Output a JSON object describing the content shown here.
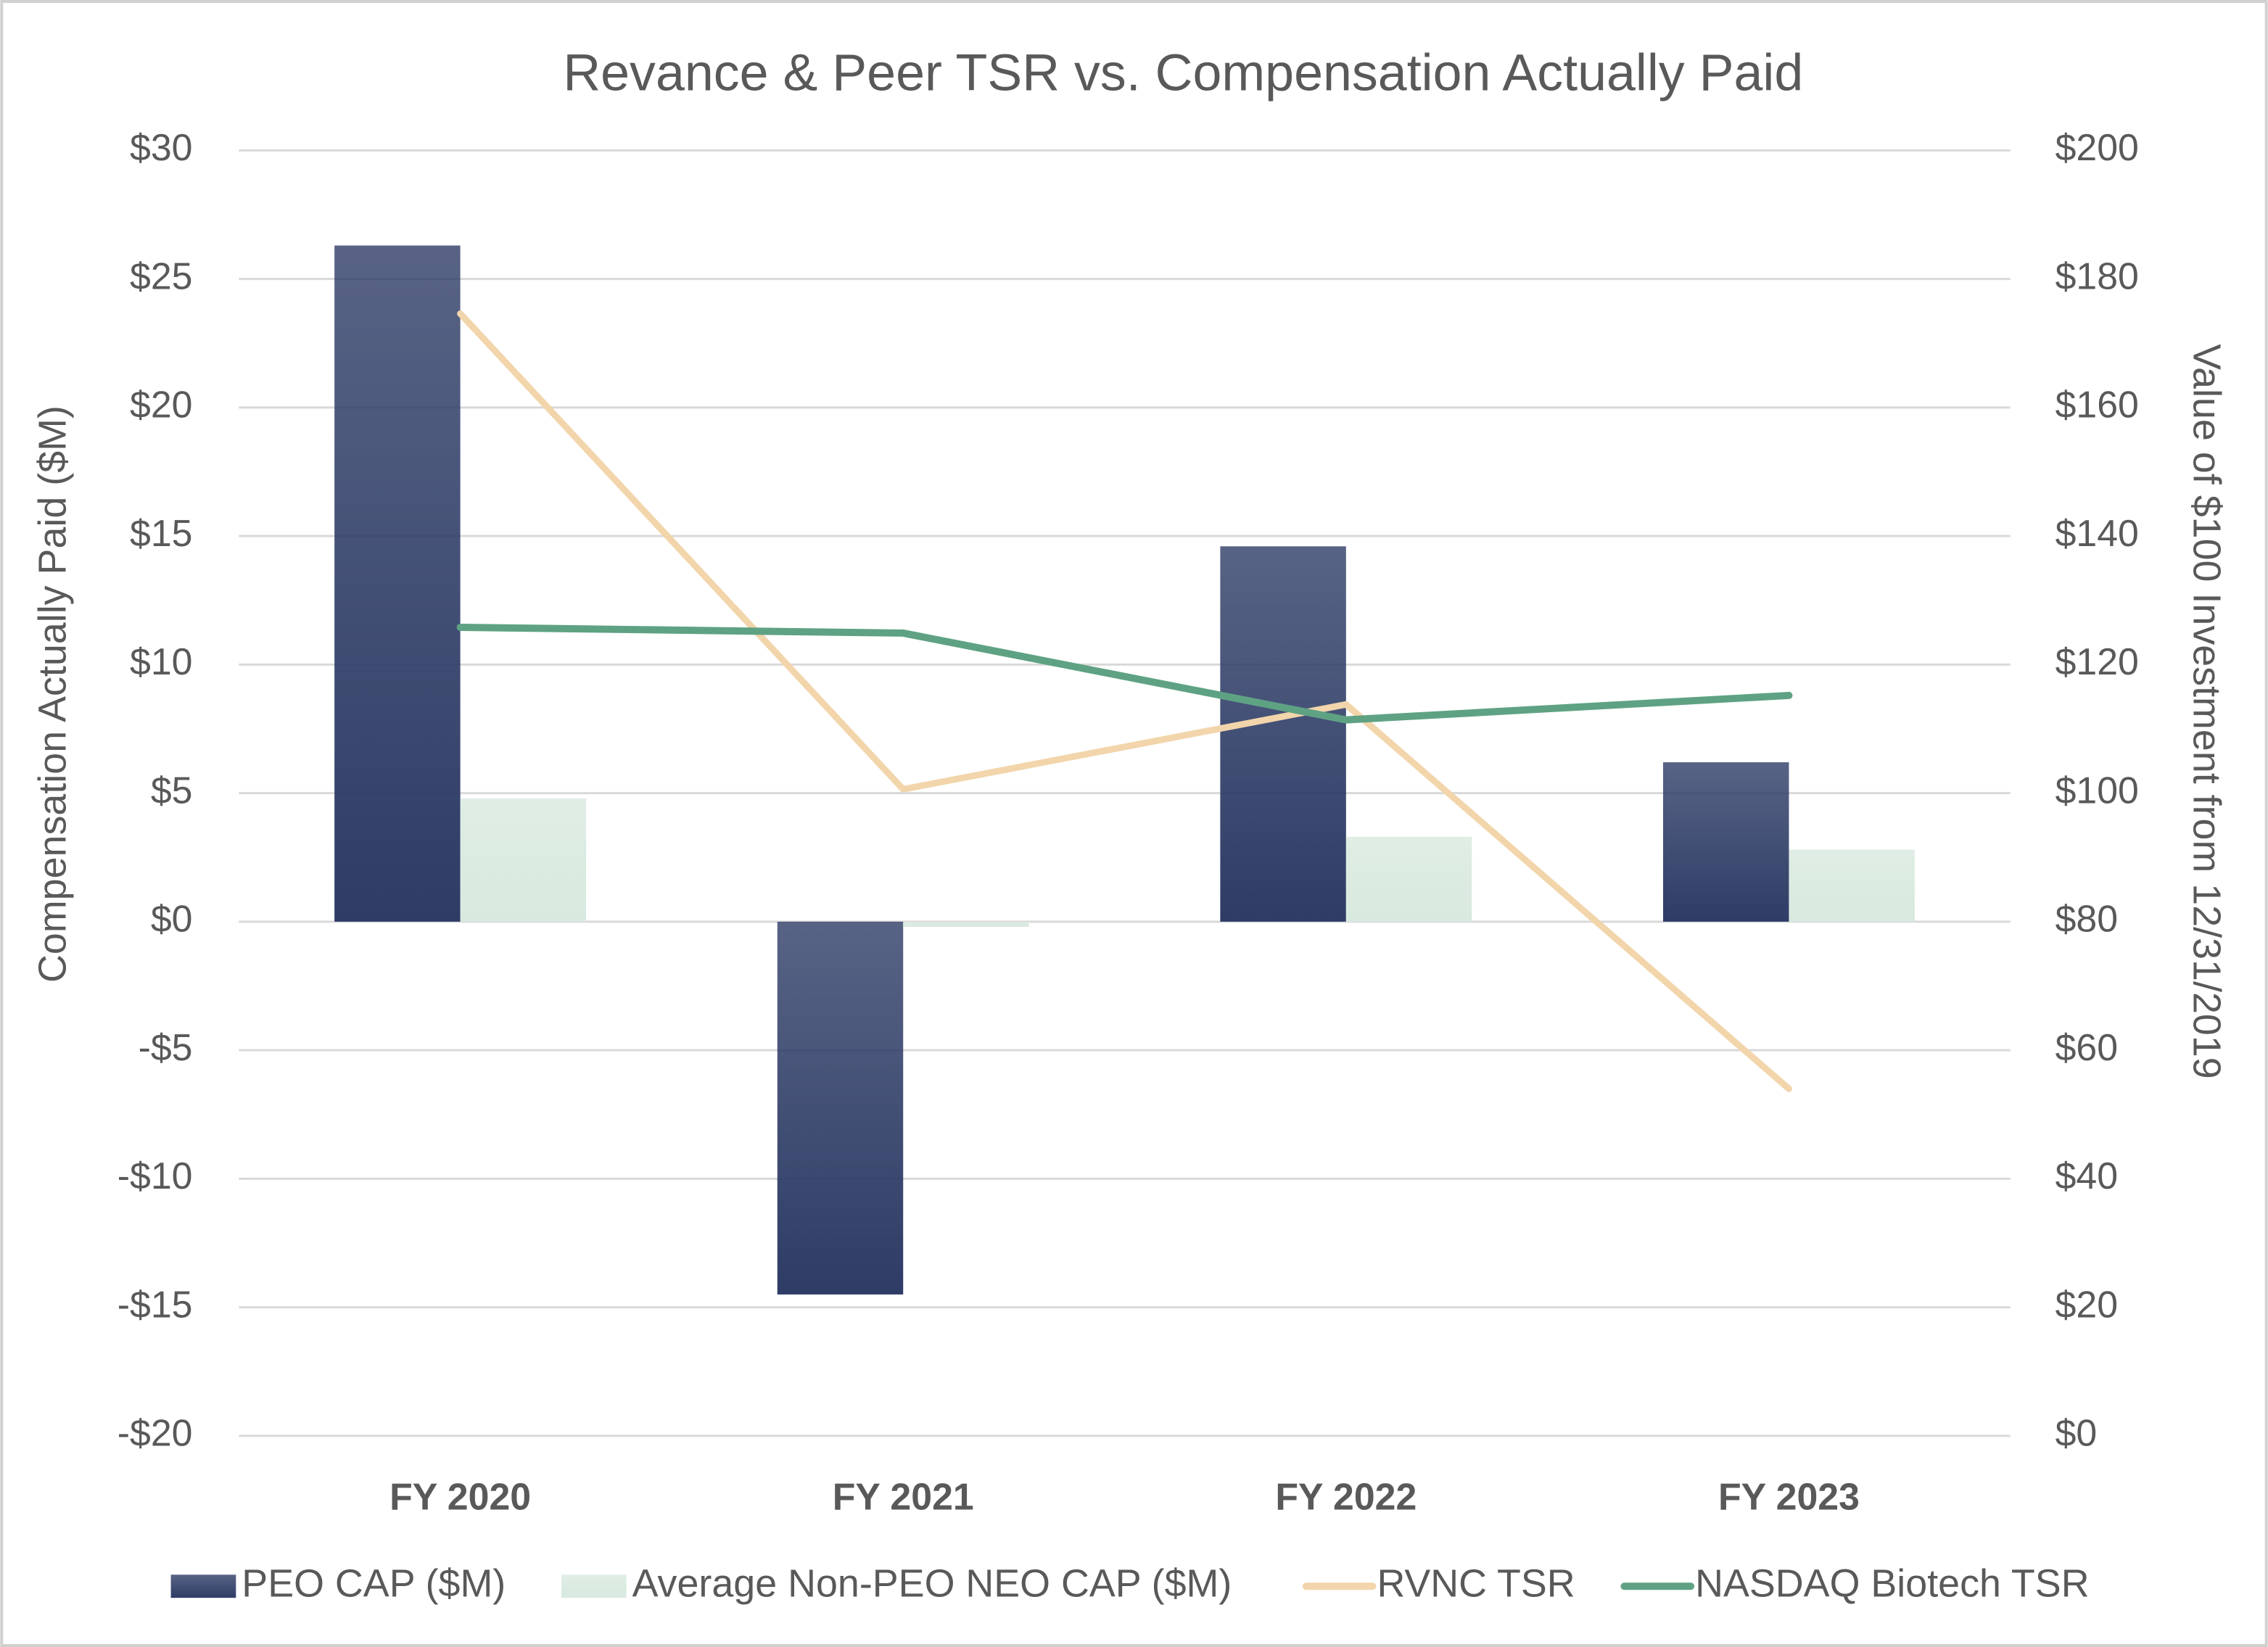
{
  "chart_data": {
    "type": "bar",
    "title": "Revance & Peer TSR vs. Compensation Actually Paid",
    "y_label": "Compensation Actually Paid ($M)",
    "y2_label": "Value of $100 Investment from 12/31/2019",
    "categories": [
      "FY 2020",
      "FY 2021",
      "FY 2022",
      "FY 2023"
    ],
    "series": [
      {
        "name": "PEO CAP ($M)",
        "type": "bar",
        "color": "#2e3c66",
        "values": [
          26.3,
          -14.5,
          14.6,
          6.2
        ]
      },
      {
        "name": "Average Non-PEO NEO CAP ($M)",
        "type": "bar",
        "color": "#d8e9df",
        "values": [
          4.8,
          -0.2,
          3.3,
          2.8
        ]
      },
      {
        "name": "RVNC TSR",
        "type": "line",
        "axis": "y2",
        "color": "#f2d5ab",
        "values": [
          174.6,
          100.6,
          113.8,
          54.0
        ]
      },
      {
        "name": "NASDAQ Biotech TSR",
        "type": "line",
        "axis": "y2",
        "color": "#5ea283",
        "values": [
          125.8,
          124.9,
          111.4,
          115.2
        ]
      }
    ],
    "ylim": [
      -20,
      30
    ],
    "yticks": [
      {
        "value": -20,
        "label": "-$20"
      },
      {
        "value": -15,
        "label": "-$15"
      },
      {
        "value": -10,
        "label": "-$10"
      },
      {
        "value": -5,
        "label": "-$5"
      },
      {
        "value": 0,
        "label": "$0"
      },
      {
        "value": 5,
        "label": "$5"
      },
      {
        "value": 10,
        "label": "$10"
      },
      {
        "value": 15,
        "label": "$15"
      },
      {
        "value": 20,
        "label": "$20"
      },
      {
        "value": 25,
        "label": "$25"
      },
      {
        "value": 30,
        "label": "$30"
      }
    ],
    "y2lim": [
      0,
      200
    ],
    "y2ticks": [
      {
        "value": 0,
        "label": "$0"
      },
      {
        "value": 20,
        "label": "$20"
      },
      {
        "value": 40,
        "label": "$40"
      },
      {
        "value": 60,
        "label": "$60"
      },
      {
        "value": 80,
        "label": "$80"
      },
      {
        "value": 100,
        "label": "$100"
      },
      {
        "value": 120,
        "label": "$120"
      },
      {
        "value": 140,
        "label": "$140"
      },
      {
        "value": 160,
        "label": "$160"
      },
      {
        "value": 180,
        "label": "$180"
      },
      {
        "value": 200,
        "label": "$200"
      }
    ],
    "grid": true,
    "legend": "bottom"
  }
}
